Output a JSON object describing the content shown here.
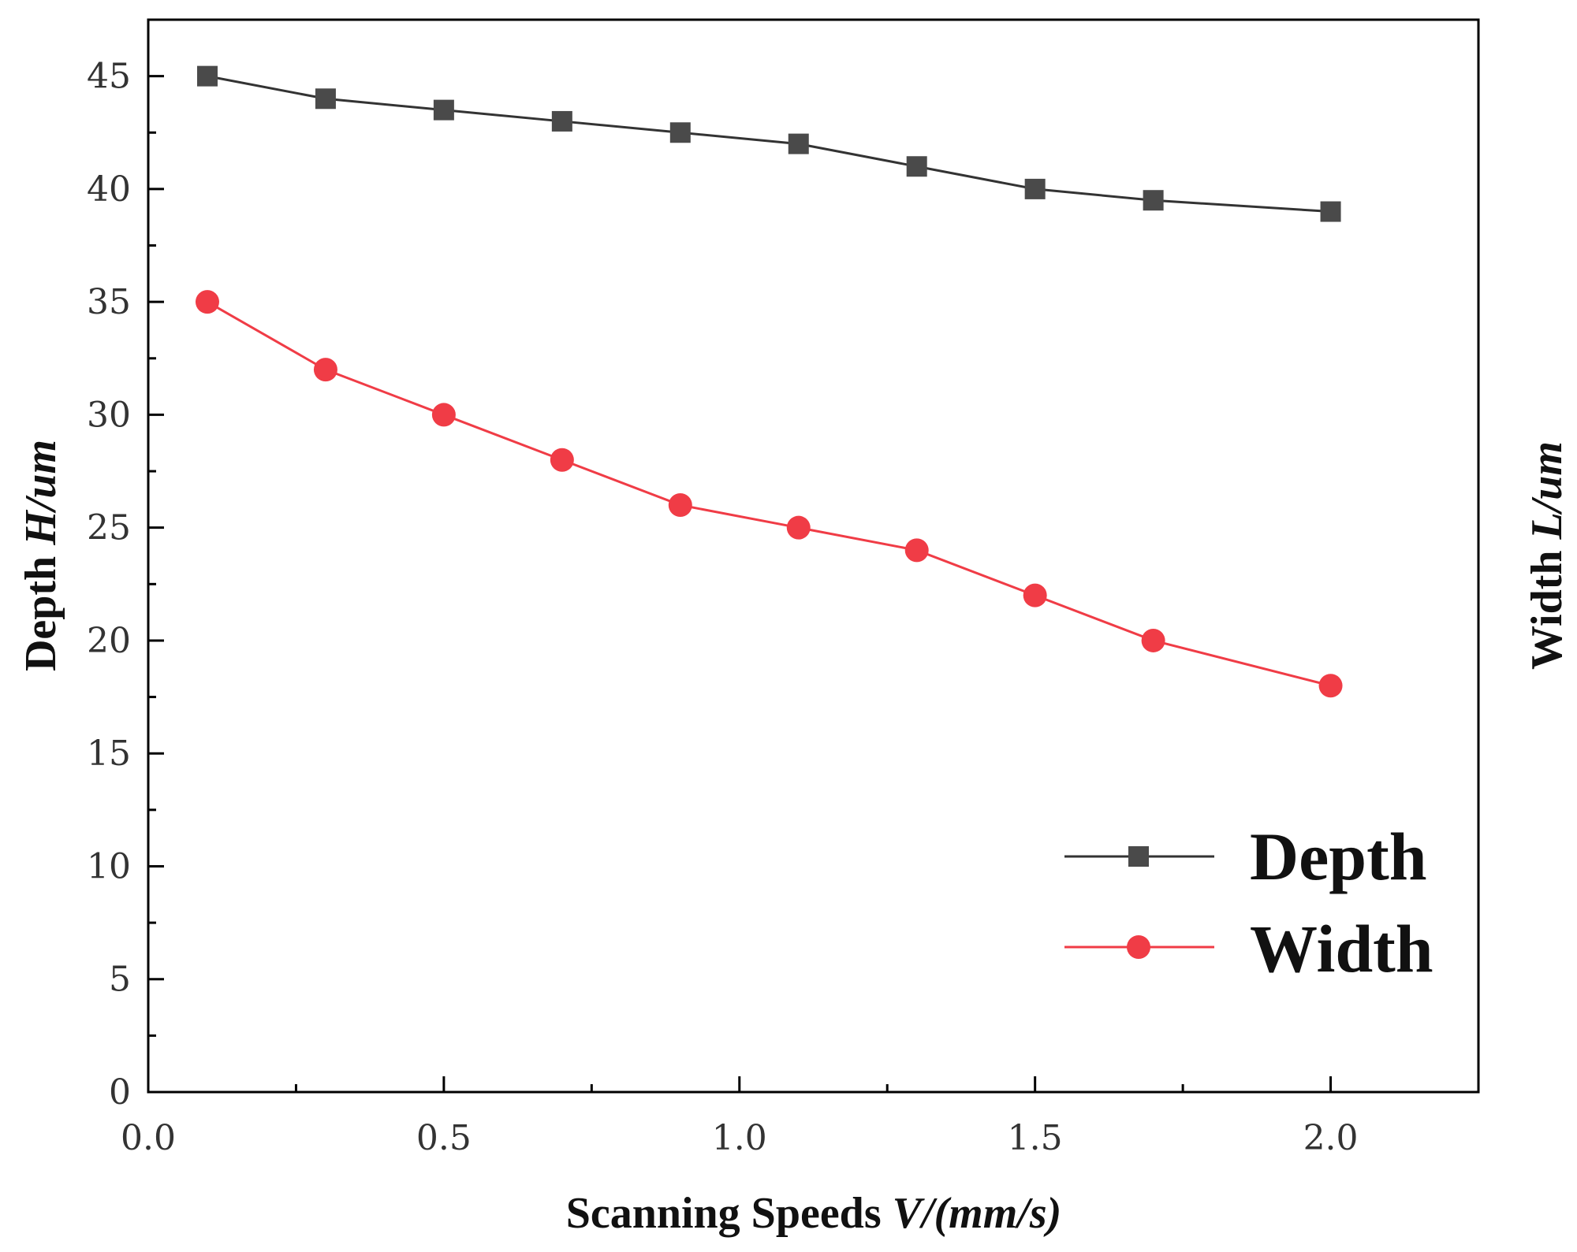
{
  "chart_data": {
    "type": "line",
    "title": "",
    "xlabel": {
      "prefix": "Scanning Speeds ",
      "italic": "V/(mm/s)"
    },
    "ylabel": {
      "prefix": "Depth ",
      "italic": "H/um"
    },
    "y2label": {
      "prefix": "Width ",
      "italic": "L/um"
    },
    "xlim": [
      0.0,
      2.25
    ],
    "ylim": [
      0,
      47.5
    ],
    "x_ticks": [
      0.0,
      0.5,
      1.0,
      1.5,
      2.0
    ],
    "x_tick_labels": [
      "0.0",
      "0.5",
      "1.0",
      "1.5",
      "2.0"
    ],
    "y_ticks": [
      0,
      5,
      10,
      15,
      20,
      25,
      30,
      35,
      40,
      45
    ],
    "y_tick_labels": [
      "0",
      "5",
      "10",
      "15",
      "20",
      "25",
      "30",
      "35",
      "40",
      "45"
    ],
    "x": [
      0.1,
      0.3,
      0.5,
      0.7,
      0.9,
      1.1,
      1.3,
      1.5,
      1.7,
      2.0
    ],
    "series": [
      {
        "name": "Depth",
        "marker": "square",
        "color": "#4a4a4a",
        "line_color": "#333333",
        "values": [
          45,
          44,
          43.5,
          43,
          42.5,
          42,
          41,
          40,
          39.5,
          39
        ]
      },
      {
        "name": "Width",
        "marker": "circle",
        "color": "#f03c46",
        "line_color": "#f03c46",
        "values": [
          35,
          32,
          30,
          28,
          26,
          25,
          24,
          22,
          20,
          18
        ]
      }
    ],
    "legend_position": "bottom-right",
    "grid": false
  }
}
